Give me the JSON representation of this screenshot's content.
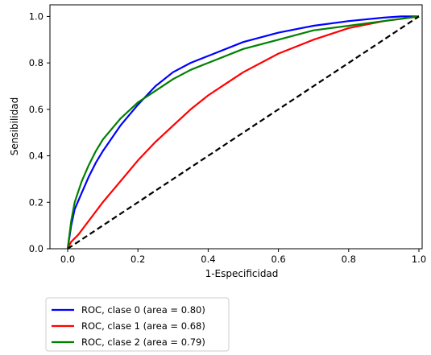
{
  "chart_data": {
    "type": "line",
    "title": "",
    "xlabel": "1-Especificidad",
    "ylabel": "Sensibilidad",
    "xlim": [
      0.0,
      1.0
    ],
    "ylim": [
      0.0,
      1.05
    ],
    "x_ticks": [
      "0.0",
      "0.2",
      "0.4",
      "0.6",
      "0.8",
      "1.0"
    ],
    "y_ticks": [
      "0.0",
      "0.2",
      "0.4",
      "0.6",
      "0.8",
      "1.0"
    ],
    "grid": false,
    "legend_position": "below-left",
    "series": [
      {
        "name": "ROC, clase 0 (area = 0.80)",
        "color": "#0000ff",
        "x": [
          0,
          0.01,
          0.02,
          0.04,
          0.06,
          0.08,
          0.1,
          0.15,
          0.2,
          0.25,
          0.3,
          0.35,
          0.4,
          0.5,
          0.6,
          0.7,
          0.8,
          0.9,
          0.95,
          1.0
        ],
        "y": [
          0,
          0.1,
          0.17,
          0.24,
          0.31,
          0.37,
          0.42,
          0.53,
          0.62,
          0.7,
          0.76,
          0.8,
          0.83,
          0.89,
          0.93,
          0.96,
          0.98,
          0.995,
          1.0,
          1.0
        ]
      },
      {
        "name": "ROC, clase 1 (area = 0.68)",
        "color": "#ff0000",
        "x": [
          0,
          0.01,
          0.03,
          0.05,
          0.1,
          0.15,
          0.2,
          0.25,
          0.3,
          0.35,
          0.4,
          0.45,
          0.5,
          0.6,
          0.7,
          0.8,
          0.9,
          0.95,
          1.0
        ],
        "y": [
          0,
          0.03,
          0.06,
          0.1,
          0.2,
          0.29,
          0.38,
          0.46,
          0.53,
          0.6,
          0.66,
          0.71,
          0.76,
          0.84,
          0.9,
          0.95,
          0.98,
          0.99,
          1.0
        ]
      },
      {
        "name": "ROC, clase 2 (area = 0.79)",
        "color": "#008000",
        "x": [
          0,
          0.01,
          0.02,
          0.04,
          0.06,
          0.08,
          0.1,
          0.15,
          0.2,
          0.25,
          0.3,
          0.35,
          0.4,
          0.5,
          0.6,
          0.7,
          0.8,
          0.9,
          0.95,
          1.0
        ],
        "y": [
          0,
          0.12,
          0.2,
          0.29,
          0.36,
          0.42,
          0.47,
          0.56,
          0.63,
          0.68,
          0.73,
          0.77,
          0.8,
          0.86,
          0.9,
          0.94,
          0.96,
          0.98,
          0.99,
          1.0
        ]
      },
      {
        "name": "",
        "color": "#000000",
        "dashed": true,
        "x": [
          0,
          1
        ],
        "y": [
          0,
          1
        ]
      }
    ]
  }
}
